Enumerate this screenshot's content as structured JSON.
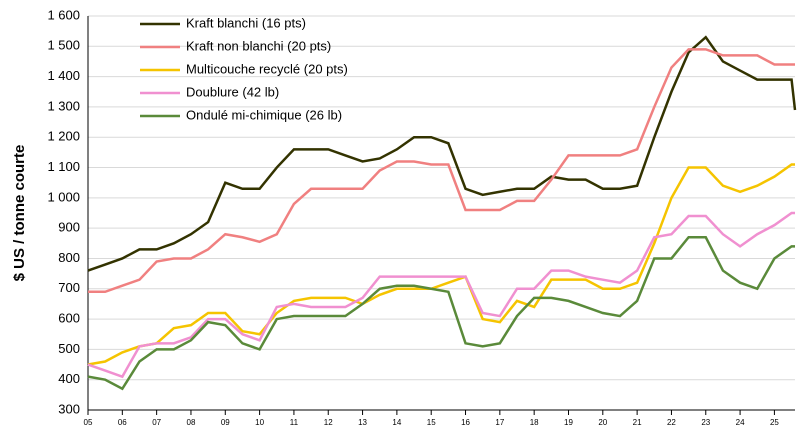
{
  "chart_data": {
    "type": "line",
    "ylabel": "$ US / tonne courte",
    "x": [
      5,
      5.5,
      6,
      6.5,
      7,
      7.5,
      8,
      8.5,
      9,
      9.5,
      10,
      10.5,
      11,
      11.5,
      12,
      12.5,
      13,
      13.5,
      14,
      14.5,
      15,
      15.5,
      16,
      16.5,
      17,
      17.5,
      18,
      18.5,
      19,
      19.5,
      20,
      20.5,
      21,
      21.5,
      22,
      22.5,
      23,
      23.5,
      24,
      24.5,
      25,
      25.5,
      25.6
    ],
    "xlim": [
      5,
      25.6
    ],
    "xticks": [
      {
        "value": 5,
        "label": "05"
      },
      {
        "value": 6,
        "label": "06"
      },
      {
        "value": 7,
        "label": "07"
      },
      {
        "value": 8,
        "label": "08"
      },
      {
        "value": 9,
        "label": "09"
      },
      10,
      11,
      12,
      13,
      14,
      15,
      16,
      17,
      18,
      19,
      20,
      21,
      22,
      23,
      24,
      25
    ],
    "ylim": [
      300,
      1600
    ],
    "yticks": [
      300,
      400,
      500,
      600,
      700,
      800,
      900,
      {
        "value": 1000,
        "label": "1 000"
      },
      {
        "value": 1100,
        "label": "1 100"
      },
      {
        "value": 1200,
        "label": "1 200"
      },
      {
        "value": 1300,
        "label": "1 300"
      },
      {
        "value": 1400,
        "label": "1 400"
      },
      {
        "value": 1500,
        "label": "1 500"
      },
      {
        "value": 1600,
        "label": "1 600"
      }
    ],
    "grid": true,
    "legend": "upper left",
    "series": [
      {
        "name": "Kraft blanchi (16 pts)",
        "color": "#333300",
        "values": [
          760,
          780,
          800,
          830,
          830,
          850,
          880,
          920,
          1050,
          1030,
          1030,
          1100,
          1160,
          1160,
          1160,
          1140,
          1120,
          1130,
          1160,
          1200,
          1200,
          1180,
          1030,
          1010,
          1020,
          1030,
          1030,
          1070,
          1060,
          1060,
          1030,
          1030,
          1040,
          1200,
          1350,
          1480,
          1530,
          1450,
          1420,
          1390,
          1390,
          1390,
          1290
        ]
      },
      {
        "name": "Kraft non blanchi (20 pts)",
        "color": "#f08080",
        "values": [
          690,
          690,
          710,
          730,
          790,
          800,
          800,
          830,
          880,
          870,
          855,
          880,
          980,
          1030,
          1030,
          1030,
          1030,
          1090,
          1120,
          1120,
          1110,
          1110,
          960,
          960,
          960,
          990,
          990,
          1060,
          1140,
          1140,
          1140,
          1140,
          1160,
          1300,
          1430,
          1490,
          1490,
          1470,
          1470,
          1470,
          1440,
          1440,
          1440
        ]
      },
      {
        "name": "Multicouche recyclé (20 pts)",
        "color": "#f5c400",
        "values": [
          450,
          460,
          490,
          510,
          520,
          570,
          580,
          620,
          620,
          560,
          550,
          620,
          660,
          670,
          670,
          670,
          650,
          680,
          700,
          700,
          700,
          720,
          740,
          600,
          590,
          660,
          640,
          730,
          730,
          730,
          700,
          700,
          720,
          850,
          1000,
          1100,
          1100,
          1040,
          1020,
          1040,
          1070,
          1110,
          1110
        ]
      },
      {
        "name": "Doublure (42 lb)",
        "color": "#f090d0",
        "values": [
          450,
          430,
          410,
          510,
          520,
          520,
          540,
          600,
          600,
          550,
          530,
          640,
          650,
          640,
          640,
          640,
          670,
          740,
          740,
          740,
          740,
          740,
          740,
          620,
          610,
          700,
          700,
          760,
          760,
          740,
          730,
          720,
          760,
          870,
          880,
          940,
          940,
          880,
          840,
          880,
          910,
          950,
          950
        ]
      },
      {
        "name": "Ondulé mi-chimique (26 lb)",
        "color": "#5a8a3a",
        "values": [
          410,
          400,
          370,
          460,
          500,
          500,
          530,
          590,
          580,
          520,
          500,
          600,
          610,
          610,
          610,
          610,
          650,
          700,
          710,
          710,
          700,
          690,
          520,
          510,
          520,
          610,
          670,
          670,
          660,
          640,
          620,
          610,
          660,
          800,
          800,
          870,
          870,
          760,
          720,
          700,
          800,
          840,
          840
        ]
      }
    ]
  }
}
